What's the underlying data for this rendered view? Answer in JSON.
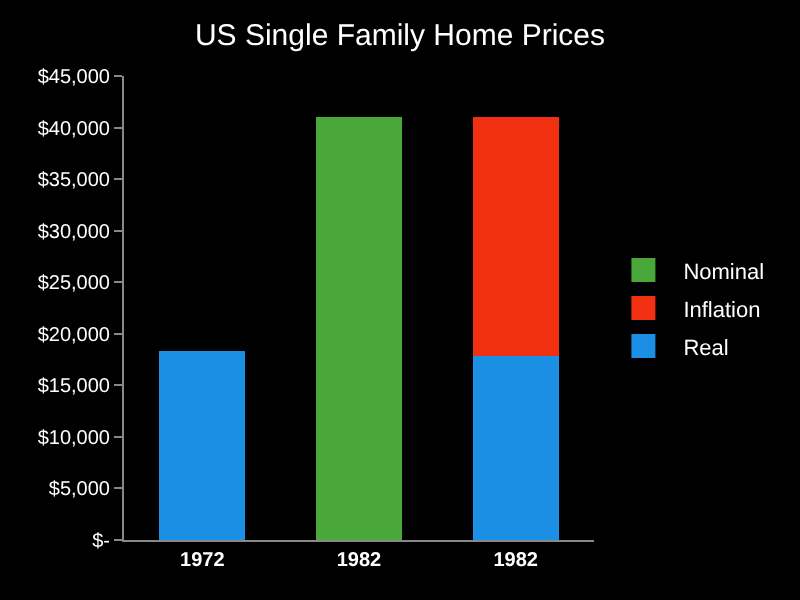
{
  "chart_data": {
    "type": "bar",
    "title": "US Single Family Home Prices",
    "categories": [
      "1972",
      "1982",
      "1982"
    ],
    "stacked": true,
    "series": [
      {
        "name": "Real",
        "color": "#1a8fe3",
        "values": [
          18300,
          null,
          17800
        ]
      },
      {
        "name": "Inflation",
        "color": "#f03010",
        "values": [
          null,
          null,
          23200
        ]
      },
      {
        "name": "Nominal",
        "color": "#4aa83a",
        "values": [
          null,
          41000,
          null
        ]
      }
    ],
    "ylim": [
      0,
      45000
    ],
    "yticks": [
      {
        "value": 0,
        "label": "$-"
      },
      {
        "value": 5000,
        "label": "$5,000"
      },
      {
        "value": 10000,
        "label": "$10,000"
      },
      {
        "value": 15000,
        "label": "$15,000"
      },
      {
        "value": 20000,
        "label": "$20,000"
      },
      {
        "value": 25000,
        "label": "$25,000"
      },
      {
        "value": 30000,
        "label": "$30,000"
      },
      {
        "value": 35000,
        "label": "$35,000"
      },
      {
        "value": 40000,
        "label": "$40,000"
      },
      {
        "value": 45000,
        "label": "$45,000"
      }
    ],
    "grid": false,
    "legend": "right"
  }
}
